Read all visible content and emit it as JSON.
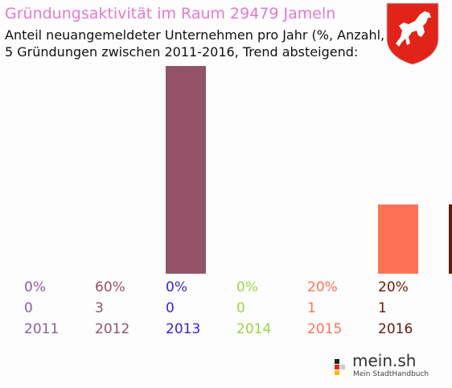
{
  "header": {
    "title": "Gründungsaktivität im Raum 29479 Jameln",
    "subtitle_line1": "Anteil neuangemeldeter Unternehmen pro Jahr (%, Anzahl, Jahr)",
    "subtitle_line2": "5 Gründungen zwischen 2011-2016, Trend absteigend:"
  },
  "logo": {
    "name": "mein.sh",
    "tagline": "Mein StadtHandbuch"
  },
  "chart_data": {
    "type": "bar",
    "title": "Gründungsaktivität im Raum 29479 Jameln",
    "categories": [
      "2011",
      "2012",
      "2013",
      "2014",
      "2015",
      "2016"
    ],
    "percent_labels": [
      "0%",
      "60%",
      "0%",
      "0%",
      "20%",
      "20%"
    ],
    "count_labels": [
      "0",
      "3",
      "0",
      "0",
      "1",
      "1"
    ],
    "values": [
      0,
      60,
      0,
      0,
      20,
      20
    ],
    "counts": [
      0,
      3,
      0,
      0,
      1,
      1
    ],
    "colors": [
      "#8e5aa8",
      "#945268",
      "#3a1fd0",
      "#99d64a",
      "#ff7256",
      "#661a0a"
    ],
    "ylim": [
      0,
      60
    ],
    "grid": false,
    "legend": "none"
  }
}
